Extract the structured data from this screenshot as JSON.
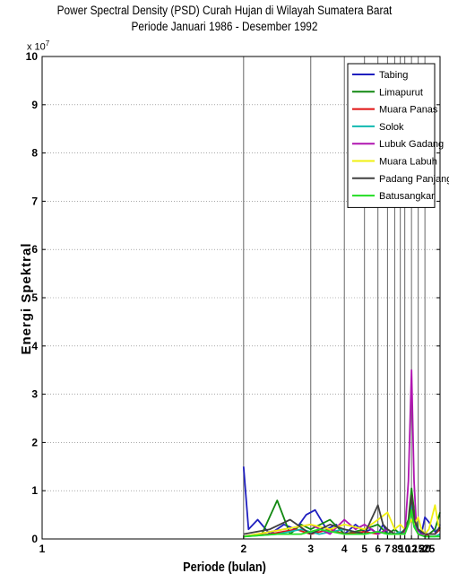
{
  "title_line1": "Power Spectral Density (PSD) Curah Hujan di Wilayah Sumatera Barat",
  "title_line2": "Periode Januari 1986 - Desember 1992",
  "exponent_label": {
    "base": "x 10",
    "power": "7"
  },
  "chart_data": {
    "type": "line",
    "title": "Power Spectral Density (PSD) Curah Hujan di Wilayah Sumatera Barat",
    "subtitle": "Periode Januari 1986 - Desember 1992",
    "xlabel": "Periode (bulan)",
    "ylabel": "Energi Spektral",
    "x_scale": "reciprocal",
    "xlim": [
      1,
      80
    ],
    "ylim": [
      0,
      10
    ],
    "y_unit_multiplier": "x 10^7",
    "x_ticks": [
      1,
      2,
      3,
      4,
      5,
      6,
      7,
      8,
      9,
      10,
      12,
      15,
      20,
      25
    ],
    "y_ticks": [
      0,
      1,
      2,
      3,
      4,
      5,
      6,
      7,
      8,
      9,
      10
    ],
    "vertical_reference_lines": [
      2,
      3,
      4,
      5,
      6,
      7,
      8,
      9,
      10,
      12,
      15,
      20
    ],
    "grid": true,
    "legend_position": "top-right",
    "series": [
      {
        "name": "Tabing",
        "color": "#1f1fbf",
        "x": [
          2,
          2.05,
          2.15,
          2.3,
          2.5,
          2.7,
          2.9,
          3.1,
          3.4,
          3.7,
          4,
          4.5,
          5,
          5.5,
          6,
          6.5,
          7,
          8,
          9,
          10,
          11,
          12,
          13,
          14,
          15,
          17,
          20,
          25,
          40,
          60,
          80
        ],
        "y": [
          1.5,
          0.2,
          0.4,
          0.1,
          0.3,
          0.2,
          0.5,
          0.6,
          0.2,
          0.3,
          0.1,
          0.3,
          0.15,
          0.2,
          0.1,
          0.3,
          0.1,
          0.2,
          0.1,
          0.2,
          0.3,
          0.8,
          0.5,
          0.3,
          0.2,
          0.1,
          0.45,
          0.35,
          0.15,
          0.2,
          0.3
        ]
      },
      {
        "name": "Limapurut",
        "color": "#118811",
        "x": [
          2,
          2.2,
          2.4,
          2.6,
          2.8,
          3,
          3.5,
          4,
          5,
          6,
          7,
          8,
          9,
          10,
          11,
          12,
          13,
          15,
          20,
          25,
          40,
          80
        ],
        "y": [
          0.05,
          0.1,
          0.8,
          0.1,
          0.3,
          0.2,
          0.4,
          0.1,
          0.2,
          0.3,
          0.1,
          0.2,
          0.1,
          0.2,
          0.4,
          1.05,
          0.6,
          0.2,
          0.1,
          0.1,
          0.2,
          0.55
        ]
      },
      {
        "name": "Muara Panas",
        "color": "#e01010",
        "x": [
          2,
          2.3,
          2.7,
          3,
          3.5,
          4,
          5,
          6,
          7,
          8,
          9,
          10,
          11,
          12,
          13,
          15,
          20,
          25,
          40,
          80
        ],
        "y": [
          0.05,
          0.1,
          0.2,
          0.1,
          0.2,
          0.1,
          0.15,
          0.1,
          0.2,
          0.1,
          0.1,
          0.15,
          0.3,
          0.9,
          0.4,
          0.1,
          0.05,
          0.1,
          0.1,
          0.2
        ]
      },
      {
        "name": "Solok",
        "color": "#10b8b0",
        "x": [
          2,
          2.4,
          2.8,
          3.2,
          4,
          5,
          6,
          7,
          8,
          9,
          10,
          11,
          12,
          13,
          15,
          20,
          25,
          40,
          80
        ],
        "y": [
          0.05,
          0.1,
          0.2,
          0.1,
          0.2,
          0.1,
          0.15,
          0.1,
          0.1,
          0.15,
          0.1,
          0.3,
          0.7,
          0.3,
          0.1,
          0.05,
          0.05,
          0.05,
          0.1
        ]
      },
      {
        "name": "Lubuk Gadang",
        "color": "#b015b0",
        "x": [
          2,
          2.5,
          3,
          3.5,
          4,
          4.5,
          5,
          6,
          7,
          8,
          9,
          10,
          11,
          12,
          13,
          14,
          15,
          20,
          25,
          40,
          80
        ],
        "y": [
          0.05,
          0.2,
          0.3,
          0.1,
          0.4,
          0.2,
          0.3,
          0.1,
          0.2,
          0.1,
          0.1,
          0.1,
          1.2,
          3.5,
          1.2,
          0.3,
          0.1,
          0.1,
          0.1,
          0.1,
          0.25
        ]
      },
      {
        "name": "Muara Labuh",
        "color": "#f0f010",
        "x": [
          2,
          2.5,
          3,
          3.5,
          4,
          5,
          6,
          7,
          8,
          9,
          10,
          11,
          12,
          13,
          15,
          17,
          20,
          25,
          40,
          60,
          80
        ],
        "y": [
          0.05,
          0.2,
          0.3,
          0.2,
          0.3,
          0.2,
          0.4,
          0.55,
          0.2,
          0.3,
          0.2,
          0.3,
          0.4,
          0.3,
          0.45,
          0.2,
          0.1,
          0.2,
          0.7,
          0.3,
          0.2
        ]
      },
      {
        "name": "Padang Panjang",
        "color": "#404040",
        "x": [
          2,
          2.3,
          2.6,
          3,
          3.5,
          4,
          5,
          6,
          6.5,
          7,
          8,
          9,
          10,
          11,
          12,
          13,
          15,
          20,
          25,
          40,
          80
        ],
        "y": [
          0.1,
          0.2,
          0.4,
          0.1,
          0.3,
          0.2,
          0.1,
          0.7,
          0.3,
          0.2,
          0.1,
          0.1,
          0.2,
          0.3,
          0.9,
          0.4,
          0.2,
          0.1,
          0.1,
          0.1,
          0.25
        ]
      },
      {
        "name": "Batusangkar",
        "color": "#22dd22",
        "x": [
          2,
          2.4,
          2.8,
          3.2,
          4,
          5,
          6,
          7,
          8,
          9,
          10,
          11,
          12,
          13,
          15,
          20,
          25,
          40,
          80
        ],
        "y": [
          0.05,
          0.1,
          0.1,
          0.2,
          0.1,
          0.1,
          0.15,
          0.1,
          0.1,
          0.1,
          0.1,
          0.3,
          0.6,
          0.25,
          0.1,
          0.05,
          0.05,
          0.05,
          0.05
        ]
      }
    ]
  }
}
